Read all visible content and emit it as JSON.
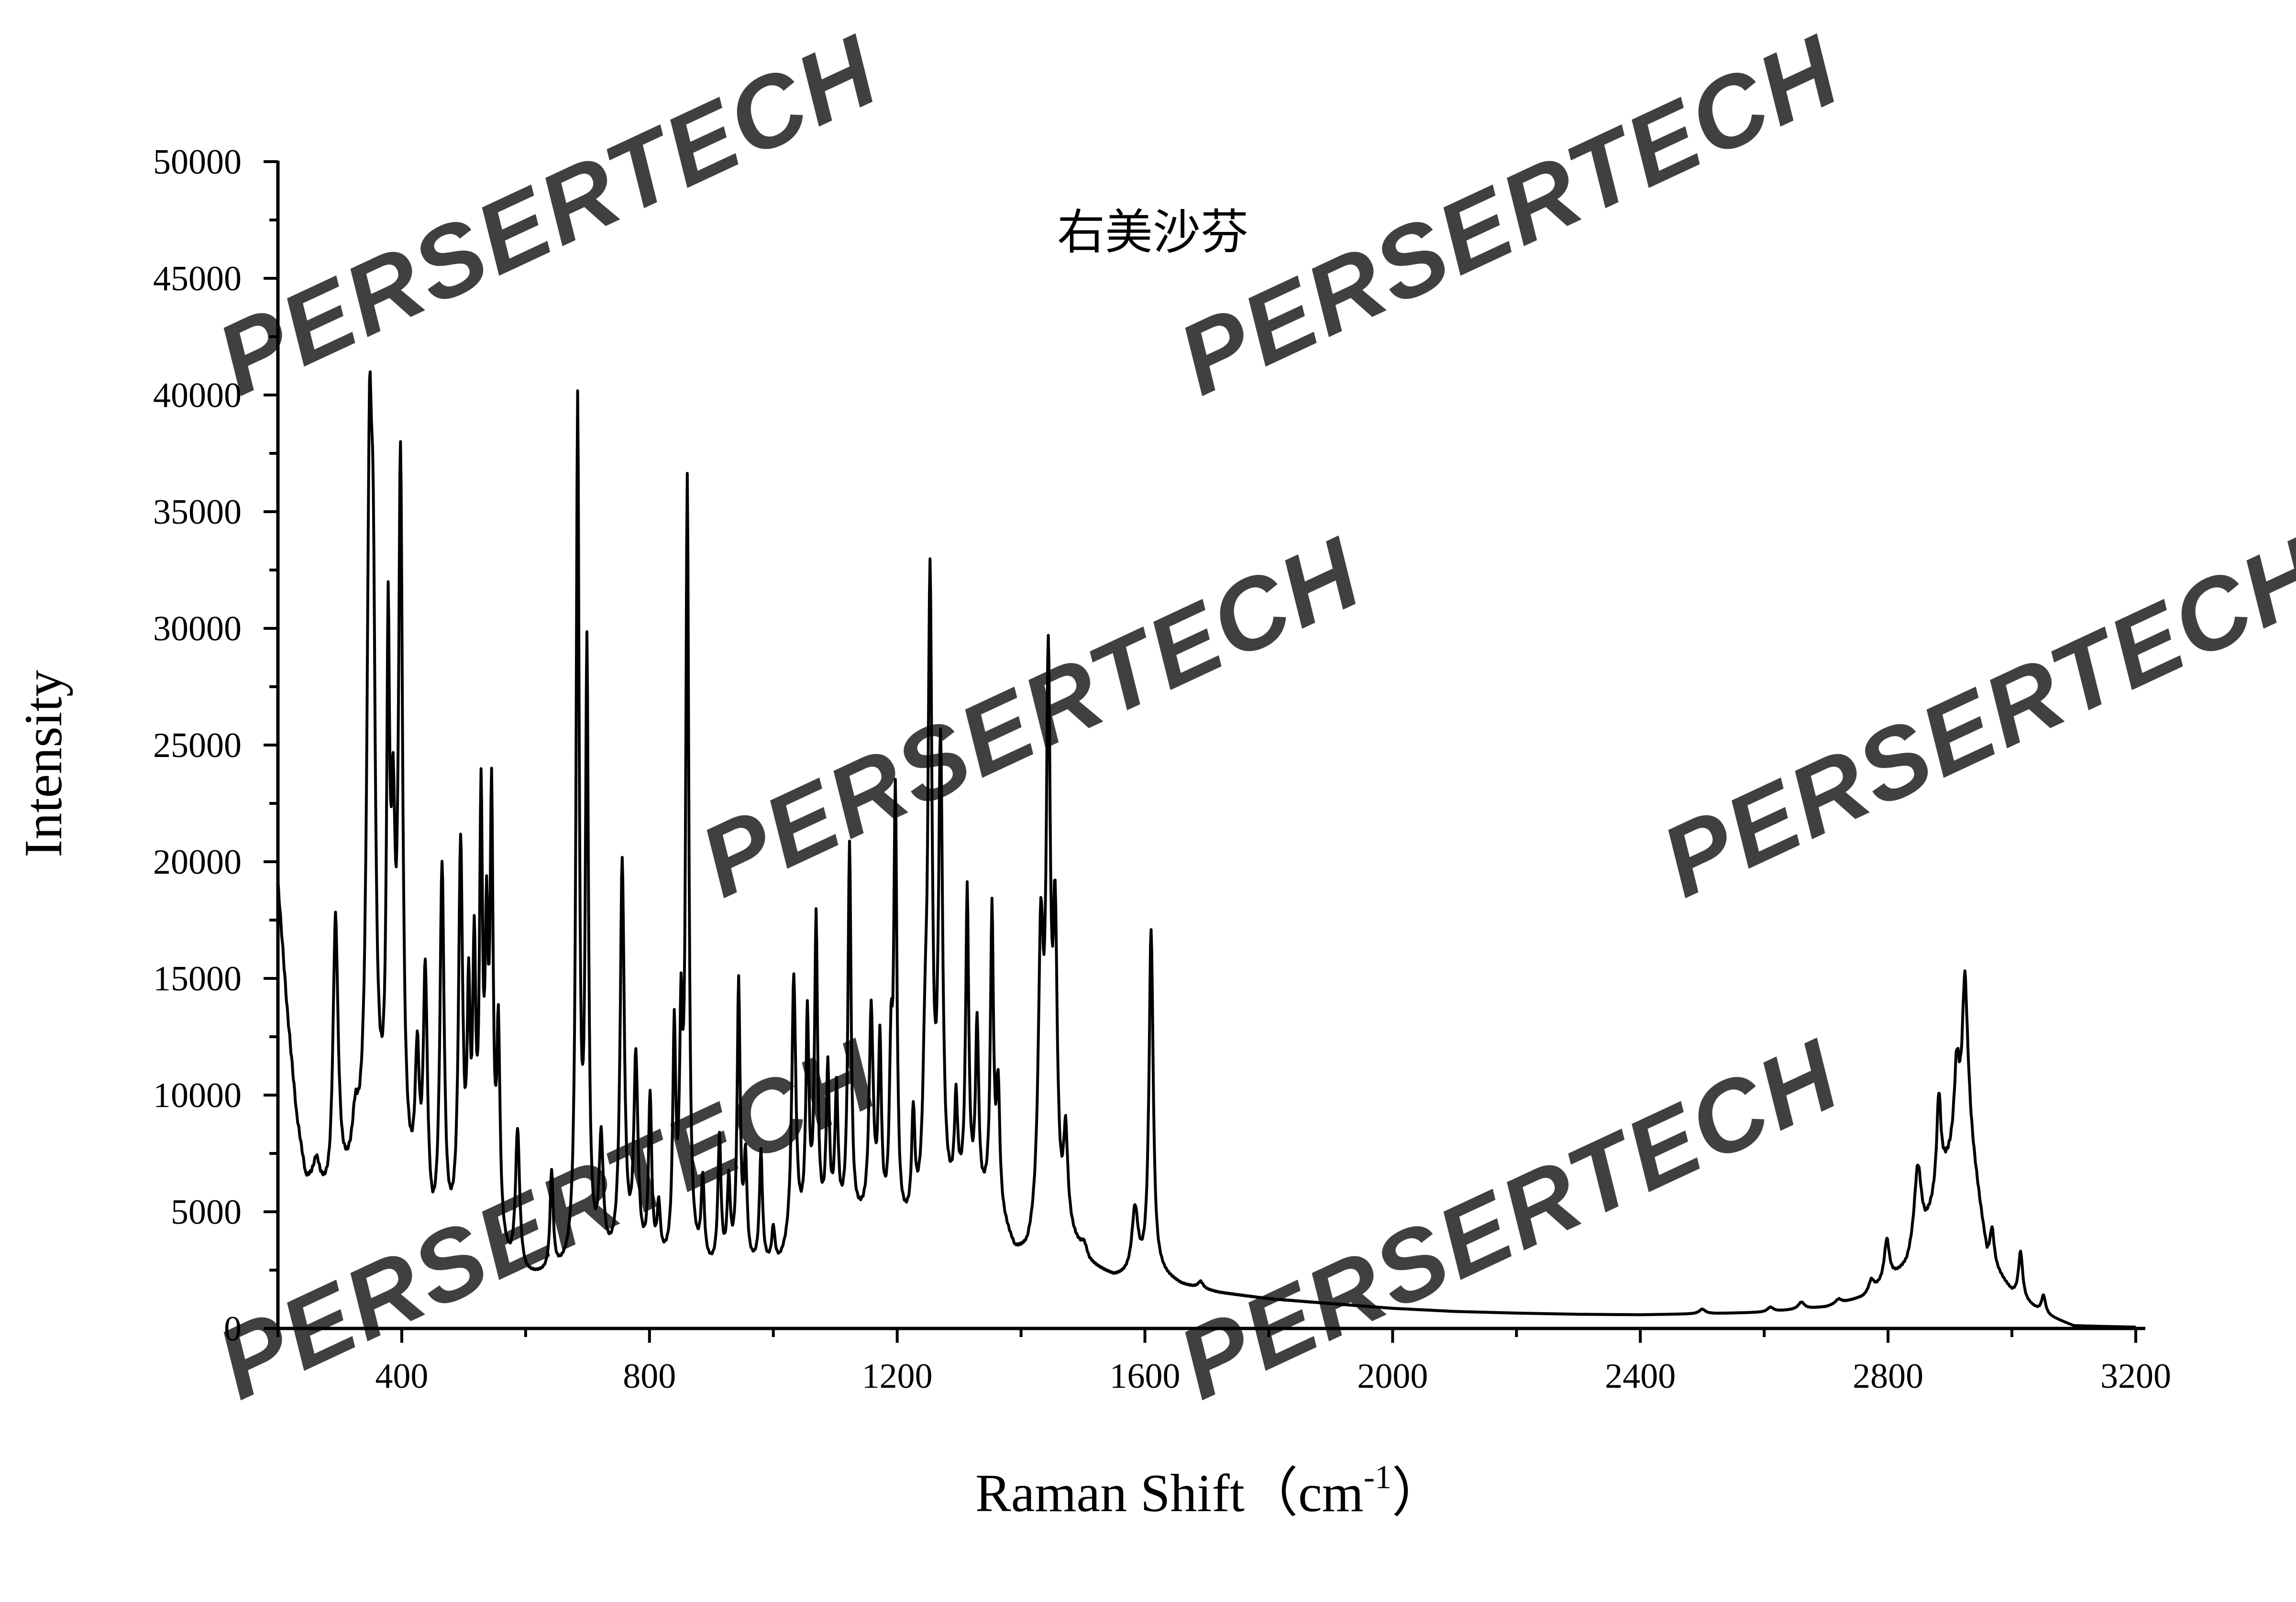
{
  "chart_data": {
    "type": "line",
    "title": "右美沙芬",
    "xlabel": "Raman Shift",
    "xlabel_unit_open": "（cm",
    "xlabel_unit_sup": "-1",
    "xlabel_unit_close": "）",
    "ylabel": "Intensity",
    "xlim": [
      200,
      3200
    ],
    "ylim": [
      0,
      50000
    ],
    "x_ticks": [
      400,
      800,
      1200,
      1600,
      2000,
      2400,
      2800,
      3200
    ],
    "x_tick_labels": [
      "400",
      "800",
      "1200",
      "1600",
      "2000",
      "2400",
      "2800",
      "3200"
    ],
    "y_ticks": [
      0,
      5000,
      10000,
      15000,
      20000,
      25000,
      30000,
      35000,
      40000,
      45000,
      50000
    ],
    "y_tick_labels": [
      "0",
      "5000",
      "10000",
      "15000",
      "20000",
      "25000",
      "30000",
      "35000",
      "40000",
      "45000",
      "50000"
    ],
    "grid": false,
    "legend": "none",
    "line_color": "#000000",
    "baseline": [
      [
        200,
        19000
      ],
      [
        215,
        13500
      ],
      [
        230,
        9000
      ],
      [
        245,
        6200
      ],
      [
        265,
        5800
      ],
      [
        285,
        4800
      ],
      [
        300,
        5500
      ],
      [
        330,
        6000
      ],
      [
        360,
        6800
      ],
      [
        380,
        6300
      ],
      [
        420,
        4800
      ],
      [
        450,
        3000
      ],
      [
        480,
        3200
      ],
      [
        550,
        3500
      ],
      [
        575,
        2300
      ],
      [
        600,
        2000
      ],
      [
        640,
        2100
      ],
      [
        700,
        2500
      ],
      [
        760,
        2600
      ],
      [
        820,
        2500
      ],
      [
        880,
        2500
      ],
      [
        900,
        2300
      ],
      [
        960,
        2400
      ],
      [
        1010,
        2500
      ],
      [
        1050,
        3800
      ],
      [
        1100,
        4200
      ],
      [
        1140,
        4300
      ],
      [
        1200,
        3800
      ],
      [
        1260,
        4200
      ],
      [
        1300,
        5200
      ],
      [
        1360,
        5000
      ],
      [
        1390,
        3000
      ],
      [
        1410,
        2800
      ],
      [
        1440,
        4000
      ],
      [
        1480,
        3600
      ],
      [
        1510,
        2600
      ],
      [
        1550,
        2100
      ],
      [
        1580,
        2100
      ],
      [
        1625,
        2200
      ],
      [
        1660,
        1800
      ],
      [
        1720,
        1500
      ],
      [
        1800,
        1250
      ],
      [
        1900,
        1050
      ],
      [
        2000,
        850
      ],
      [
        2100,
        720
      ],
      [
        2200,
        650
      ],
      [
        2300,
        600
      ],
      [
        2400,
        580
      ],
      [
        2500,
        620
      ],
      [
        2600,
        680
      ],
      [
        2700,
        900
      ],
      [
        2760,
        1300
      ],
      [
        2790,
        1800
      ],
      [
        2830,
        2500
      ],
      [
        2860,
        4000
      ],
      [
        2890,
        6500
      ],
      [
        2930,
        8500
      ],
      [
        2960,
        3000
      ],
      [
        3000,
        1500
      ],
      [
        3050,
        600
      ],
      [
        3080,
        300
      ],
      [
        3100,
        100
      ],
      [
        3200,
        50
      ]
    ],
    "peaks": [
      [
        262,
        1000,
        6
      ],
      [
        293,
        12000,
        5
      ],
      [
        325,
        2000,
        6
      ],
      [
        348,
        28000,
        5
      ],
      [
        354,
        17000,
        4
      ],
      [
        378,
        20500,
        3
      ],
      [
        386,
        12000,
        4
      ],
      [
        398,
        30000,
        4
      ],
      [
        425,
        6000,
        4
      ],
      [
        438,
        10500,
        4
      ],
      [
        465,
        16000,
        4
      ],
      [
        495,
        16500,
        4
      ],
      [
        508,
        9000,
        3
      ],
      [
        517,
        11000,
        3
      ],
      [
        528,
        17500,
        3
      ],
      [
        537,
        11000,
        3
      ],
      [
        545,
        17500,
        3
      ],
      [
        556,
        8500,
        3
      ],
      [
        587,
        6000,
        4
      ],
      [
        642,
        4300,
        3
      ],
      [
        684,
        36500,
        3
      ],
      [
        699,
        25500,
        3
      ],
      [
        722,
        5000,
        4
      ],
      [
        756,
        17000,
        4
      ],
      [
        778,
        8500,
        4
      ],
      [
        801,
        7000,
        3
      ],
      [
        815,
        2200,
        3
      ],
      [
        840,
        9500,
        3
      ],
      [
        851,
        9000,
        3
      ],
      [
        861,
        33000,
        3
      ],
      [
        886,
        3500,
        3
      ],
      [
        913,
        5500,
        3
      ],
      [
        928,
        3500,
        3
      ],
      [
        944,
        12000,
        3
      ],
      [
        955,
        4300,
        3
      ],
      [
        980,
        4800,
        3
      ],
      [
        1000,
        1500,
        3
      ],
      [
        1033,
        11500,
        4
      ],
      [
        1055,
        9000,
        3
      ],
      [
        1069,
        13000,
        3
      ],
      [
        1088,
        6500,
        3
      ],
      [
        1102,
        5500,
        3
      ],
      [
        1123,
        16200,
        3
      ],
      [
        1158,
        9000,
        4
      ],
      [
        1172,
        7500,
        3
      ],
      [
        1190,
        6500,
        3
      ],
      [
        1197,
        18200,
        3
      ],
      [
        1226,
        4500,
        3
      ],
      [
        1245,
        5000,
        4
      ],
      [
        1253,
        26500,
        4
      ],
      [
        1270,
        19500,
        4
      ],
      [
        1295,
        4000,
        3
      ],
      [
        1313,
        13000,
        3
      ],
      [
        1329,
        7500,
        3
      ],
      [
        1353,
        12500,
        3
      ],
      [
        1363,
        5000,
        3
      ],
      [
        1432,
        12000,
        5
      ],
      [
        1444,
        22500,
        4
      ],
      [
        1455,
        12000,
        4
      ],
      [
        1472,
        4000,
        4
      ],
      [
        1502,
        500,
        6
      ],
      [
        1584,
        2800,
        6
      ],
      [
        1610,
        14800,
        4
      ],
      [
        1690,
        300,
        5
      ],
      [
        2500,
        200,
        6
      ],
      [
        2610,
        200,
        6
      ],
      [
        2660,
        300,
        6
      ],
      [
        2720,
        200,
        6
      ],
      [
        2773,
        500,
        5
      ],
      [
        2798,
        1800,
        5
      ],
      [
        2848,
        3500,
        7
      ],
      [
        2882,
        4000,
        4
      ],
      [
        2911,
        3500,
        5
      ],
      [
        2924,
        6500,
        5
      ],
      [
        2968,
        1500,
        4
      ],
      [
        3014,
        2000,
        4
      ],
      [
        3051,
        800,
        4
      ]
    ]
  },
  "watermark": {
    "text": "PERSERTECH",
    "colors": [
      "#c8c0f0",
      "#f7c2c8",
      "#fbe6a8"
    ]
  }
}
